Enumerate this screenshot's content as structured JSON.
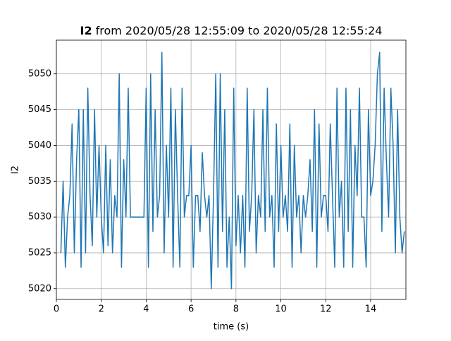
{
  "chart_data": {
    "type": "line",
    "title": {
      "bold": "I2",
      "rest": "from 2020/05/28 12:55:09 to 2020/05/28 12:55:24"
    },
    "xlabel": "time (s)",
    "ylabel": "I2",
    "xlim": [
      0,
      15.57
    ],
    "ylim": [
      5018.5,
      5054.7
    ],
    "xticks": [
      0,
      2,
      4,
      6,
      8,
      10,
      12,
      14
    ],
    "yticks": [
      5020,
      5025,
      5030,
      5035,
      5040,
      5045,
      5050
    ],
    "grid": true,
    "series": [
      {
        "color": "#1f77b4",
        "x": [
          0.2,
          0.3,
          0.4,
          0.5,
          0.6,
          0.7,
          0.8,
          0.9,
          1.0,
          1.1,
          1.2,
          1.3,
          1.4,
          1.5,
          1.6,
          1.7,
          1.8,
          1.9,
          2.0,
          2.1,
          2.2,
          2.3,
          2.4,
          2.5,
          2.6,
          2.7,
          2.8,
          2.9,
          3.0,
          3.1,
          3.2,
          3.3,
          3.4,
          3.5,
          3.6,
          3.7,
          3.8,
          3.9,
          4.0,
          4.1,
          4.2,
          4.3,
          4.4,
          4.5,
          4.6,
          4.7,
          4.8,
          4.9,
          5.0,
          5.1,
          5.2,
          5.3,
          5.4,
          5.5,
          5.6,
          5.7,
          5.8,
          5.9,
          6.0,
          6.1,
          6.2,
          6.3,
          6.4,
          6.5,
          6.6,
          6.7,
          6.8,
          6.9,
          7.0,
          7.1,
          7.2,
          7.3,
          7.4,
          7.5,
          7.6,
          7.7,
          7.8,
          7.9,
          8.0,
          8.1,
          8.2,
          8.3,
          8.4,
          8.5,
          8.6,
          8.7,
          8.8,
          8.9,
          9.0,
          9.1,
          9.2,
          9.3,
          9.4,
          9.5,
          9.6,
          9.7,
          9.8,
          9.9,
          10.0,
          10.1,
          10.2,
          10.3,
          10.4,
          10.5,
          10.6,
          10.7,
          10.8,
          10.9,
          11.0,
          11.1,
          11.2,
          11.3,
          11.4,
          11.5,
          11.6,
          11.7,
          11.8,
          11.9,
          12.0,
          12.1,
          12.2,
          12.3,
          12.4,
          12.5,
          12.6,
          12.7,
          12.8,
          12.9,
          13.0,
          13.1,
          13.2,
          13.3,
          13.4,
          13.5,
          13.6,
          13.7,
          13.8,
          13.9,
          14.0,
          14.1,
          14.2,
          14.3,
          14.4,
          14.5,
          14.6,
          14.7,
          14.8,
          14.9,
          15.0,
          15.1,
          15.2,
          15.3,
          15.4,
          15.5
        ],
        "values": [
          5025,
          5035,
          5023,
          5030,
          5033,
          5043,
          5025,
          5038,
          5045,
          5023,
          5045,
          5025,
          5048,
          5033,
          5026,
          5045,
          5030,
          5040,
          5030,
          5025,
          5040,
          5026,
          5038,
          5025,
          5033,
          5030,
          5050,
          5023,
          5038,
          5030,
          5048,
          5030,
          5030,
          5030,
          5030,
          5030,
          5030,
          5030,
          5048,
          5023,
          5050,
          5028,
          5045,
          5030,
          5033,
          5053,
          5025,
          5040,
          5030,
          5048,
          5023,
          5045,
          5033,
          5023,
          5048,
          5030,
          5033,
          5033,
          5040,
          5023,
          5033,
          5033,
          5028,
          5039,
          5033,
          5030,
          5033,
          5020,
          5033,
          5050,
          5023,
          5050,
          5028,
          5045,
          5023,
          5030,
          5020,
          5048,
          5026,
          5033,
          5025,
          5033,
          5023,
          5048,
          5028,
          5033,
          5045,
          5025,
          5033,
          5030,
          5045,
          5028,
          5048,
          5030,
          5033,
          5023,
          5043,
          5028,
          5040,
          5030,
          5033,
          5028,
          5043,
          5023,
          5040,
          5030,
          5033,
          5025,
          5033,
          5030,
          5033,
          5038,
          5028,
          5045,
          5023,
          5043,
          5030,
          5033,
          5033,
          5028,
          5043,
          5033,
          5023,
          5048,
          5030,
          5035,
          5023,
          5048,
          5028,
          5045,
          5023,
          5040,
          5033,
          5048,
          5030,
          5030,
          5023,
          5045,
          5033,
          5035,
          5040,
          5050,
          5053,
          5028,
          5048,
          5038,
          5030,
          5048,
          5040,
          5025,
          5045,
          5030,
          5025,
          5028
        ]
      }
    ]
  }
}
